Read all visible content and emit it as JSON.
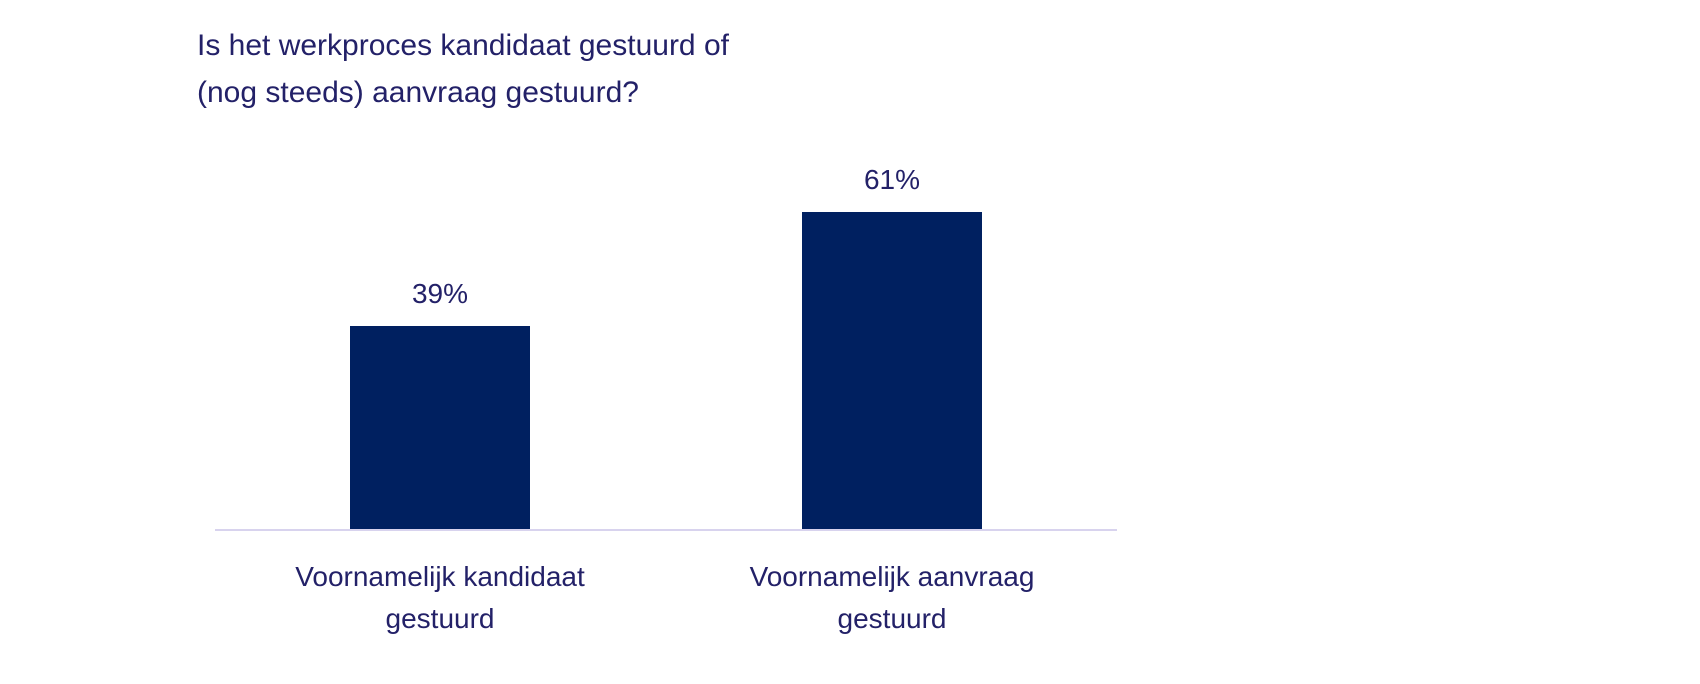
{
  "chart_data": {
    "type": "bar",
    "title": "Is het werkproces kandidaat gestuurd of (nog steeds) aanvraag gestuurd?",
    "title_lines": [
      "Is het werkproces kandidaat gestuurd of",
      "(nog steeds) aanvraag gestuurd?"
    ],
    "categories": [
      "Voornamelijk kandidaat gestuurd",
      "Voornamelijk aanvraag gestuurd"
    ],
    "category_lines": [
      [
        "Voornamelijk kandidaat",
        "gestuurd"
      ],
      [
        "Voornamelijk aanvraag",
        "gestuurd"
      ]
    ],
    "values": [
      39,
      61
    ],
    "value_labels": [
      "39%",
      "61%"
    ],
    "unit": "%",
    "xlabel": "",
    "ylabel": "",
    "ylim": [
      0,
      100
    ],
    "grid": false,
    "legend": false,
    "colors": {
      "bar": "#002060",
      "text": "#232168",
      "baseline": "#d8d3ee",
      "background": "#ffffff"
    }
  }
}
